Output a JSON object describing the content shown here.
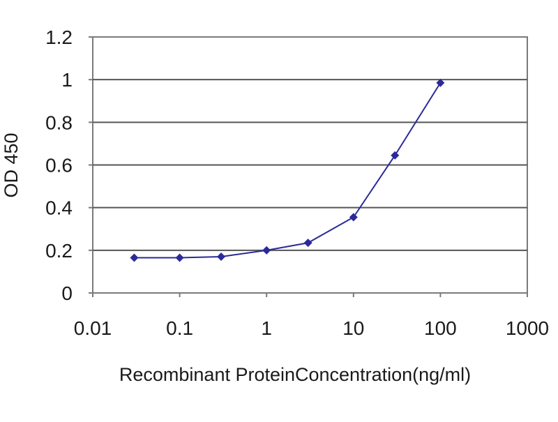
{
  "chart_data": {
    "type": "line",
    "xlabel": "Recombinant ProteinConcentration(ng/ml)",
    "ylabel": "OD 450",
    "x_scale": "log",
    "xlim": [
      0.01,
      1000
    ],
    "ylim": [
      0,
      1.2
    ],
    "x_ticks": [
      "0.01",
      "0.1",
      "1",
      "10",
      "100",
      "1000"
    ],
    "y_ticks": [
      "0",
      "0.2",
      "0.4",
      "0.6",
      "0.8",
      "1",
      "1.2"
    ],
    "grid": "horizontal",
    "series": [
      {
        "color": "#2a2a9a",
        "points": [
          {
            "x": 0.03,
            "y": 0.165
          },
          {
            "x": 0.1,
            "y": 0.165
          },
          {
            "x": 0.3,
            "y": 0.17
          },
          {
            "x": 1,
            "y": 0.2
          },
          {
            "x": 3,
            "y": 0.235
          },
          {
            "x": 10,
            "y": 0.355
          },
          {
            "x": 30,
            "y": 0.645
          },
          {
            "x": 100,
            "y": 0.985
          }
        ]
      }
    ]
  }
}
